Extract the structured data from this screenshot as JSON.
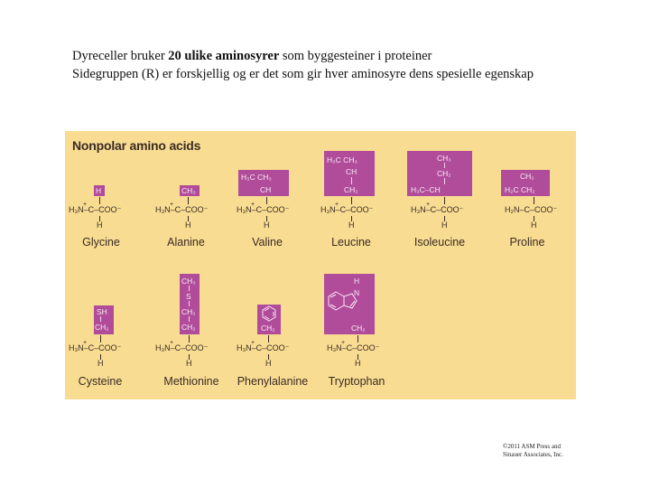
{
  "intro": {
    "line1_prefix": "Dyreceller bruker ",
    "line1_bold": "20 ulike aminosyrer",
    "line1_suffix": " som byggesteiner i proteiner",
    "line2": "Sidegruppen (R) er forskjellig og er det som gir hver aminosyre dens spesielle egenskap"
  },
  "figure": {
    "title": "Nonpolar amino acids",
    "backbone_prefix": "H₃N–C–COO⁻",
    "backbone_h_above": "+",
    "backbone_h": "H",
    "proline_backbone": "H₂N–C–COO⁻",
    "amino_acids": [
      {
        "name": "Glycine",
        "side_chain": [
          "H"
        ]
      },
      {
        "name": "Alanine",
        "side_chain": [
          "CH₃"
        ]
      },
      {
        "name": "Valine",
        "side_chain": [
          "H₃C   CH₃",
          "CH"
        ]
      },
      {
        "name": "Leucine",
        "side_chain": [
          "H₃C   CH₃",
          "CH",
          "CH₂"
        ]
      },
      {
        "name": "Isoleucine",
        "side_chain": [
          "CH₃",
          "CH₂",
          "H₃C–CH"
        ]
      },
      {
        "name": "Proline",
        "side_chain": [
          "CH₂",
          "H₂C   CH₂"
        ]
      },
      {
        "name": "Cysteine",
        "side_chain": [
          "SH",
          "CH₂"
        ]
      },
      {
        "name": "Methionine",
        "side_chain": [
          "CH₃",
          "S",
          "CH₂",
          "CH₂"
        ]
      },
      {
        "name": "Phenylalanine",
        "side_chain": [
          "CH₂"
        ]
      },
      {
        "name": "Tryptophan",
        "side_chain": [
          "H",
          "N",
          "CH₂"
        ]
      }
    ]
  },
  "credit": {
    "line1": "©2011 ASM Press and",
    "line2": "Sinauer Associates, Inc."
  }
}
